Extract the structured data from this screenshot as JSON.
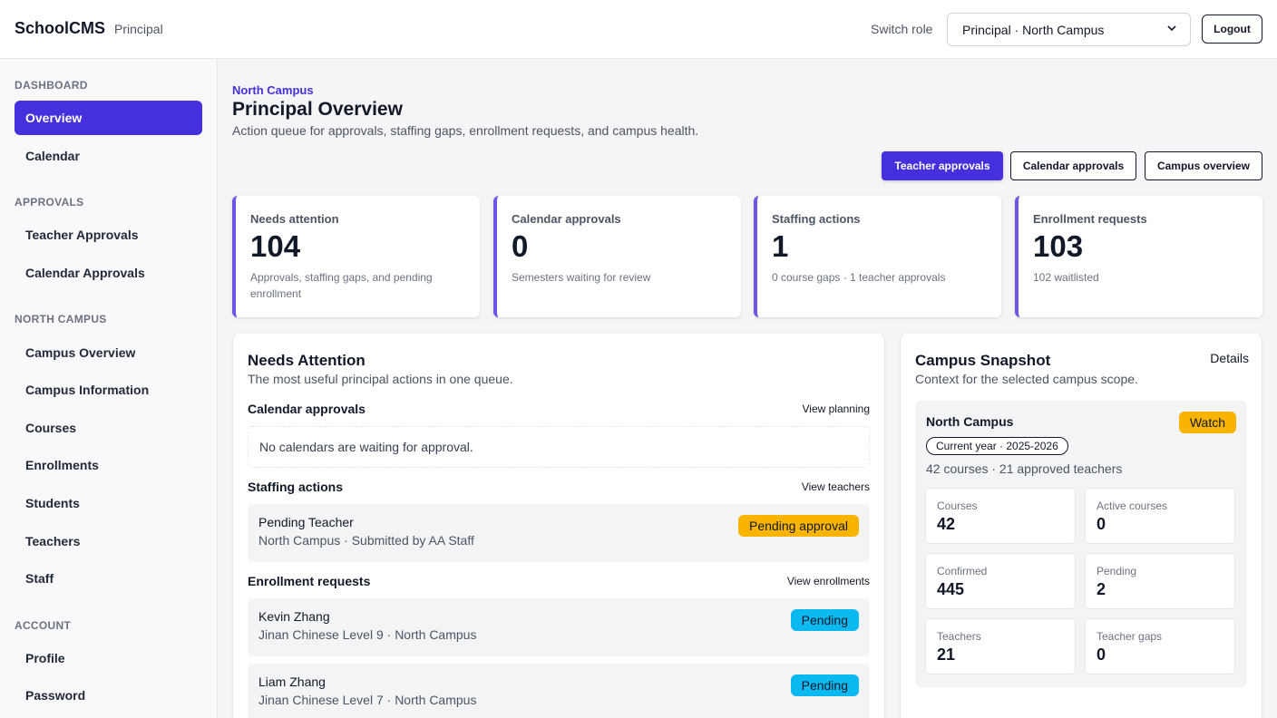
{
  "colors": {
    "accent": "#4530dd",
    "stat_border": "#6d56e8",
    "warning": "#f8b400",
    "info": "#0cb8f0"
  },
  "topbar": {
    "brand": "SchoolCMS",
    "role": "Principal",
    "switch_label": "Switch role",
    "role_select_value": "Principal · North Campus",
    "logout": "Logout"
  },
  "sidebar": {
    "sections": {
      "dashboard": "DASHBOARD",
      "approvals": "APPROVALS",
      "north_campus": "NORTH CAMPUS",
      "account": "ACCOUNT"
    },
    "items": {
      "overview": "Overview",
      "calendar": "Calendar",
      "teacher_approvals": "Teacher Approvals",
      "calendar_approvals": "Calendar Approvals",
      "campus_overview": "Campus Overview",
      "campus_information": "Campus Information",
      "courses": "Courses",
      "enrollments": "Enrollments",
      "students": "Students",
      "teachers": "Teachers",
      "staff": "Staff",
      "profile": "Profile",
      "password": "Password"
    }
  },
  "header": {
    "eyebrow": "North Campus",
    "title": "Principal Overview",
    "subtitle": "Action queue for approvals, staffing gaps, enrollment requests, and campus health.",
    "buttons": {
      "teacher_approvals": "Teacher approvals",
      "calendar_approvals": "Calendar approvals",
      "campus_overview": "Campus overview"
    }
  },
  "stats": [
    {
      "label": "Needs attention",
      "value": "104",
      "note": "Approvals, staffing gaps, and pending enrollment"
    },
    {
      "label": "Calendar approvals",
      "value": "0",
      "note": "Semesters waiting for review"
    },
    {
      "label": "Staffing actions",
      "value": "1",
      "note": "0 course gaps · 1 teacher approvals"
    },
    {
      "label": "Enrollment requests",
      "value": "103",
      "note": "102 waitlisted"
    }
  ],
  "attention": {
    "title": "Needs Attention",
    "subtitle": "The most useful principal actions in one queue.",
    "calendar": {
      "title": "Calendar approvals",
      "link": "View planning",
      "empty": "No calendars are waiting for approval."
    },
    "staffing": {
      "title": "Staffing actions",
      "link": "View teachers",
      "rows": [
        {
          "name": "Pending Teacher",
          "meta": "North Campus · Submitted by AA Staff",
          "badge": "Pending approval"
        }
      ]
    },
    "enrollment": {
      "title": "Enrollment requests",
      "link": "View enrollments",
      "rows": [
        {
          "name": "Kevin Zhang",
          "meta": "Jinan Chinese Level 9 · North Campus",
          "badge": "Pending"
        },
        {
          "name": "Liam Zhang",
          "meta": "Jinan Chinese Level 7 · North Campus",
          "badge": "Pending"
        }
      ]
    }
  },
  "snapshot": {
    "title": "Campus Snapshot",
    "details_link": "Details",
    "subtitle": "Context for the selected campus scope.",
    "campus_name": "North Campus",
    "status_badge": "Watch",
    "year_pill": "Current year · 2025-2026",
    "meta": "42 courses · 21 approved teachers",
    "metrics": [
      {
        "label": "Courses",
        "value": "42"
      },
      {
        "label": "Active courses",
        "value": "0"
      },
      {
        "label": "Confirmed",
        "value": "445"
      },
      {
        "label": "Pending",
        "value": "2"
      },
      {
        "label": "Teachers",
        "value": "21"
      },
      {
        "label": "Teacher gaps",
        "value": "0"
      }
    ]
  }
}
